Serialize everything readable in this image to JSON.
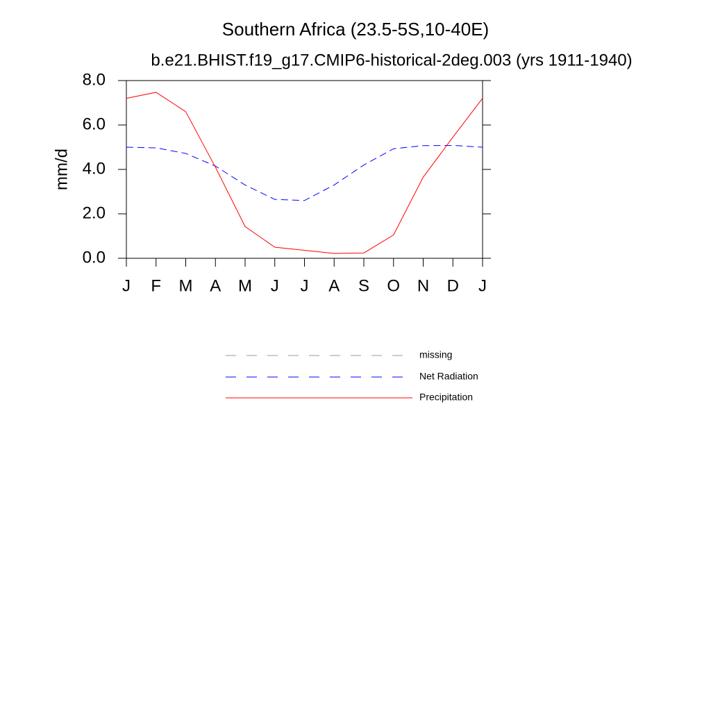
{
  "chart_data": {
    "type": "line",
    "title": "Southern Africa (23.5-5S,10-40E)",
    "subtitle": "b.e21.BHIST.f19_g17.CMIP6-historical-2deg.003 (yrs 1911-1940)",
    "y_label": "mm/d",
    "categories": [
      "J",
      "F",
      "M",
      "A",
      "M",
      "J",
      "J",
      "A",
      "S",
      "O",
      "N",
      "D",
      "J"
    ],
    "series": [
      {
        "name": "missing",
        "color": "#999999",
        "dash": true,
        "values": [
          null,
          null,
          null,
          null,
          null,
          null,
          null,
          null,
          null,
          null,
          null,
          null,
          null
        ]
      },
      {
        "name": "Net Radiation",
        "color": "#0000ff",
        "dash": true,
        "values": [
          5.0,
          4.97,
          4.72,
          4.15,
          3.3,
          2.65,
          2.6,
          3.3,
          4.2,
          4.93,
          5.07,
          5.08,
          5.0
        ]
      },
      {
        "name": "Precipitation",
        "color": "#ff0000",
        "dash": false,
        "values": [
          7.2,
          7.47,
          6.6,
          4.1,
          1.43,
          0.5,
          0.36,
          0.22,
          0.24,
          1.05,
          3.65,
          5.45,
          7.2
        ]
      }
    ],
    "ylim": [
      0,
      8
    ],
    "yticks": [
      {
        "value": 0,
        "label": "0.0"
      },
      {
        "value": 2,
        "label": "2.0"
      },
      {
        "value": 4,
        "label": "4.0"
      },
      {
        "value": 6,
        "label": "6.0"
      },
      {
        "value": 8,
        "label": "8.0"
      }
    ]
  }
}
